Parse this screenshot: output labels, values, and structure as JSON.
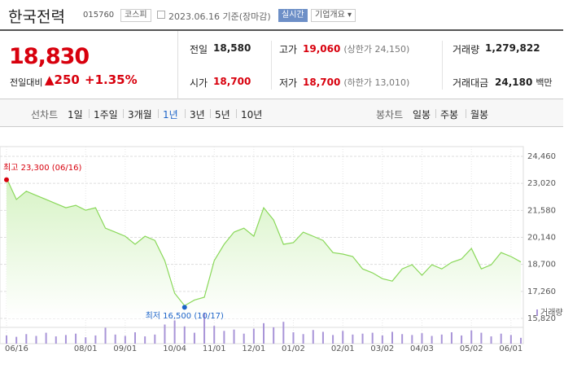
{
  "quote": {
    "name": "한국전력",
    "code": "015760",
    "market": "코스피",
    "date": "2023.06.16 기준(장마감)",
    "realtime": "실시간",
    "company_button": "기업개요",
    "price": "18,830",
    "change_label": "전일대비",
    "change": "250",
    "change_pct": "+1.35%"
  },
  "stats": [
    {
      "label": "전일",
      "value": "18,580"
    },
    {
      "label": "고가",
      "value": "19,060",
      "extra": "(상한가 24,150)"
    },
    {
      "label": "거래량",
      "value": "1,279,822"
    },
    {
      "label": "시가",
      "value": "18,700"
    },
    {
      "label": "저가",
      "value": "18,700",
      "extra": "(하한가 13,010)"
    },
    {
      "label": "거래대금",
      "value": "24,180",
      "extra": "백만"
    }
  ],
  "line_tabs": {
    "label": "선차트",
    "items": [
      "1일",
      "1주일",
      "3개월",
      "1년",
      "3년",
      "5년",
      "10년"
    ],
    "selected_index": 3
  },
  "candle_tabs": {
    "label": "봉차트",
    "items": [
      "일봉",
      "주봉",
      "월봉"
    ]
  },
  "chart_data": {
    "type": "area",
    "color": "#8ad85a",
    "fill": "#d6f3c4",
    "categories": [
      "06/16",
      null,
      null,
      null,
      null,
      null,
      null,
      null,
      "08/01",
      null,
      null,
      null,
      "09/01",
      null,
      null,
      null,
      null,
      "10/04",
      null,
      null,
      null,
      "11/01",
      null,
      null,
      null,
      "12/01",
      null,
      null,
      null,
      "01/02",
      null,
      null,
      null,
      null,
      "02/01",
      null,
      null,
      null,
      "03/02",
      null,
      null,
      null,
      "04/03",
      null,
      null,
      null,
      null,
      "05/02",
      null,
      null,
      null,
      "06/01",
      null
    ],
    "values": [
      23300,
      22160,
      22600,
      22380,
      22160,
      21940,
      21720,
      21850,
      21590,
      21720,
      20630,
      20420,
      20200,
      19770,
      20200,
      19980,
      18900,
      17160,
      16500,
      16800,
      16950,
      18900,
      19770,
      20420,
      20630,
      20200,
      21720,
      21070,
      19770,
      19860,
      20420,
      20200,
      19980,
      19330,
      19250,
      19120,
      18460,
      18250,
      17940,
      17810,
      18460,
      18680,
      18120,
      18680,
      18460,
      18810,
      18990,
      19550,
      18460,
      18680,
      19330,
      19120,
      18830
    ],
    "ylim": [
      15820,
      24460
    ],
    "yticks": [
      {
        "value": 24460,
        "label": "24,460"
      },
      {
        "value": 23020,
        "label": "23,020"
      },
      {
        "value": 21580,
        "label": "21,580"
      },
      {
        "value": 20140,
        "label": "20,140"
      },
      {
        "value": 18700,
        "label": "18,700"
      },
      {
        "value": 17260,
        "label": "17,260"
      },
      {
        "value": 15820,
        "label": "15,820"
      }
    ],
    "grid": true,
    "high": {
      "index": 0,
      "label": "최고 23,300 (06/16)",
      "color": "#d8000d"
    },
    "low": {
      "index": 18,
      "label": "최저 16,500 (10/17)",
      "color": "#1d64c8"
    },
    "volume": {
      "name": "거래량",
      "color": "#a995d8",
      "values": [
        1800000,
        1500000,
        2100000,
        1700000,
        2400000,
        1600000,
        1900000,
        2200000,
        1400000,
        1800000,
        3500000,
        2000000,
        1700000,
        2500000,
        1600000,
        2000000,
        4200000,
        5100000,
        3800000,
        2400000,
        6800000,
        3900000,
        2800000,
        3100000,
        2200000,
        3300000,
        4500000,
        3600000,
        4800000,
        2500000,
        2100000,
        3000000,
        2600000,
        1900000,
        2800000,
        2000000,
        2200000,
        2400000,
        1800000,
        2600000,
        2100000,
        1900000,
        2300000,
        1700000,
        2000000,
        2500000,
        1800000,
        2900000,
        2400000,
        1600000,
        2200000,
        1900000,
        1279822
      ]
    }
  }
}
